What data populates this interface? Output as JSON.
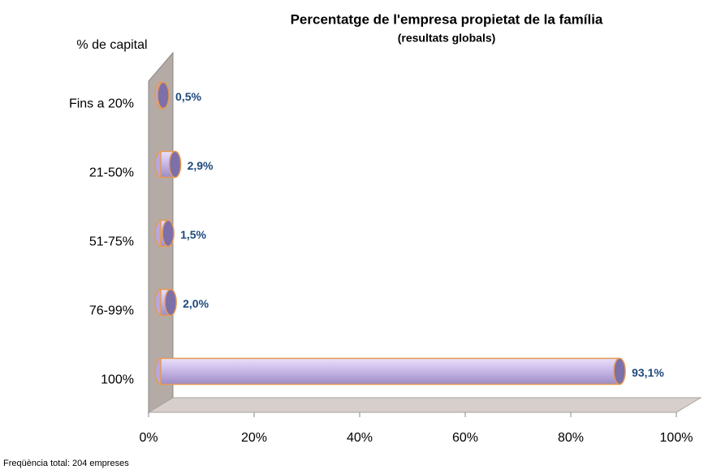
{
  "chart_data": {
    "type": "bar",
    "orientation": "horizontal",
    "title": "Percentatge de l'empresa propietat de la família",
    "subtitle": "(resultats globals)",
    "y_axis_label": "% de capital",
    "footnote": "Freqüència total: 204 empreses",
    "categories": [
      "Fins a 20%",
      "21-50%",
      "51-75%",
      "76-99%",
      "100%"
    ],
    "values": [
      0.5,
      2.9,
      1.5,
      2.0,
      93.1
    ],
    "value_labels": [
      "0,5%",
      "2,9%",
      "1,5%",
      "2,0%",
      "93,1%"
    ],
    "color": "#c8b6e6",
    "xlim": [
      0,
      100
    ],
    "xticks": [
      {
        "value": 0,
        "label": "0%"
      },
      {
        "value": 20,
        "label": "20%"
      },
      {
        "value": 40,
        "label": "40%"
      },
      {
        "value": 60,
        "label": "60%"
      },
      {
        "value": 80,
        "label": "80%"
      },
      {
        "value": 100,
        "label": "100%"
      }
    ],
    "grid": false
  }
}
